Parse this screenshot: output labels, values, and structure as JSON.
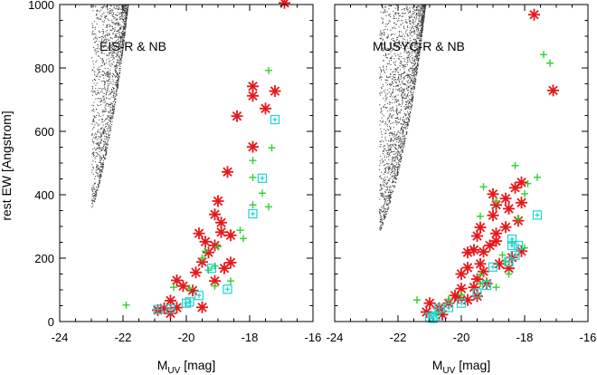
{
  "figure": {
    "ylabel": "rest EW [Angstrom]",
    "xlabel_main": "M",
    "xlabel_sub": "UV",
    "xlabel_unit": "[mag]"
  },
  "colors": {
    "cloud": "#3c3c3c",
    "red_star": "#e8171a",
    "green_cross": "#2fd12f",
    "cyan_square": "#18d6d0",
    "axis": "#000000"
  },
  "chart_data": [
    {
      "type": "scatter",
      "title": "EIS-R & NB",
      "xlim": [
        -24,
        -16
      ],
      "ylim": [
        0,
        1000
      ],
      "xticks": [
        -24,
        -22,
        -20,
        -18,
        -16
      ],
      "yticks": [
        0,
        200,
        400,
        600,
        800,
        1000
      ],
      "xtick_labels": [
        "-24",
        "-22",
        "-20",
        "-18",
        "-16"
      ],
      "ytick_labels": [
        "0",
        "200",
        "400",
        "600",
        "800",
        "1000"
      ],
      "grid": false,
      "cloud": {
        "x_start": -23.0,
        "curve_b": 26.79,
        "curve_k": 0.91,
        "color_key": "cloud"
      },
      "series": [
        {
          "marker": "asterisk",
          "color_key": "red_star",
          "points": [
            [
              -16.9,
              1005
            ],
            [
              -17.9,
              742
            ],
            [
              -17.9,
              712
            ],
            [
              -17.2,
              727
            ],
            [
              -18.4,
              648
            ],
            [
              -17.5,
              672
            ],
            [
              -17.9,
              551
            ],
            [
              -18.7,
              472
            ],
            [
              -19.0,
              380
            ],
            [
              -19.1,
              338
            ],
            [
              -18.9,
              312
            ],
            [
              -18.9,
              282
            ],
            [
              -18.6,
              272
            ],
            [
              -19.6,
              278
            ],
            [
              -19.4,
              252
            ],
            [
              -19.1,
              240
            ],
            [
              -19.3,
              218
            ],
            [
              -19.5,
              188
            ],
            [
              -18.6,
              186
            ],
            [
              -18.8,
              168
            ],
            [
              -19.7,
              155
            ],
            [
              -20.3,
              130
            ],
            [
              -19.1,
              128
            ],
            [
              -20.1,
              112
            ],
            [
              -19.8,
              98
            ],
            [
              -20.5,
              66
            ],
            [
              -20.7,
              42
            ],
            [
              -20.3,
              44
            ],
            [
              -20.5,
              26
            ],
            [
              -19.5,
              45
            ],
            [
              -20.9,
              36
            ]
          ]
        },
        {
          "marker": "cross",
          "color_key": "green_cross",
          "points": [
            [
              -17.4,
              792
            ],
            [
              -17.3,
              548
            ],
            [
              -17.9,
              508
            ],
            [
              -17.9,
              455
            ],
            [
              -17.6,
              405
            ],
            [
              -17.9,
              368
            ],
            [
              -17.4,
              362
            ],
            [
              -18.3,
              288
            ],
            [
              -19.0,
              236
            ],
            [
              -19.4,
              222
            ],
            [
              -19.5,
              200
            ],
            [
              -19.1,
              175
            ],
            [
              -19.3,
              162
            ],
            [
              -18.6,
              128
            ],
            [
              -19.1,
              112
            ],
            [
              -19.9,
              105
            ],
            [
              -20.4,
              108
            ],
            [
              -21.9,
              52
            ],
            [
              -18.2,
              262
            ]
          ]
        },
        {
          "marker": "square",
          "color_key": "cyan_square",
          "points": [
            [
              -17.2,
              637
            ],
            [
              -17.6,
              452
            ],
            [
              -17.9,
              340
            ],
            [
              -19.2,
              168
            ],
            [
              -19.6,
              82
            ],
            [
              -19.9,
              62
            ],
            [
              -20.0,
              58
            ],
            [
              -20.5,
              40
            ],
            [
              -20.9,
              38
            ],
            [
              -18.7,
              102
            ]
          ]
        }
      ]
    },
    {
      "type": "scatter",
      "title": "MUSYC-R & NB",
      "xlim": [
        -24,
        -16
      ],
      "ylim": [
        0,
        1000
      ],
      "xticks": [
        -24,
        -22,
        -20,
        -18,
        -16
      ],
      "yticks": [
        0,
        200,
        400,
        600,
        800,
        1000
      ],
      "xtick_labels": [
        "-24",
        "-22",
        "-20",
        "-18",
        "-16"
      ],
      "ytick_labels": [
        "",
        "",
        "",
        "",
        "",
        ""
      ],
      "grid": false,
      "cloud": {
        "x_start": -22.6,
        "curve_b": 25.3,
        "curve_k": 0.87,
        "color_key": "cloud"
      },
      "series": [
        {
          "marker": "asterisk",
          "color_key": "red_star",
          "points": [
            [
              -17.7,
              968
            ],
            [
              -17.1,
              729
            ],
            [
              -18.1,
              439
            ],
            [
              -18.3,
              422
            ],
            [
              -19.0,
              402
            ],
            [
              -18.6,
              388
            ],
            [
              -18.1,
              375
            ],
            [
              -18.9,
              368
            ],
            [
              -18.5,
              356
            ],
            [
              -19.0,
              335
            ],
            [
              -18.2,
              318
            ],
            [
              -18.6,
              298
            ],
            [
              -19.4,
              297
            ],
            [
              -18.9,
              278
            ],
            [
              -19.5,
              270
            ],
            [
              -18.9,
              254
            ],
            [
              -19.1,
              240
            ],
            [
              -19.6,
              226
            ],
            [
              -18.1,
              222
            ],
            [
              -19.3,
              220
            ],
            [
              -19.8,
              218
            ],
            [
              -18.4,
              202
            ],
            [
              -19.4,
              182
            ],
            [
              -19.8,
              170
            ],
            [
              -18.8,
              182
            ],
            [
              -18.5,
              168
            ],
            [
              -19.3,
              158
            ],
            [
              -20.0,
              150
            ],
            [
              -19.5,
              134
            ],
            [
              -19.2,
              120
            ],
            [
              -19.6,
              108
            ],
            [
              -20.0,
              104
            ],
            [
              -19.5,
              80
            ],
            [
              -19.8,
              68
            ],
            [
              -20.1,
              75
            ],
            [
              -20.4,
              58
            ],
            [
              -21.0,
              58
            ],
            [
              -20.7,
              42
            ],
            [
              -20.6,
              22
            ],
            [
              -21.1,
              30
            ],
            [
              -20.2,
              82
            ]
          ]
        },
        {
          "marker": "cross",
          "color_key": "green_cross",
          "points": [
            [
              -17.4,
              842
            ],
            [
              -17.2,
              815
            ],
            [
              -18.3,
              492
            ],
            [
              -17.6,
              455
            ],
            [
              -19.3,
              425
            ],
            [
              -17.9,
              435
            ],
            [
              -18.0,
              403
            ],
            [
              -18.9,
              380
            ],
            [
              -18.2,
              325
            ],
            [
              -19.4,
              332
            ],
            [
              -18.4,
              248
            ],
            [
              -18.0,
              232
            ],
            [
              -18.7,
              210
            ],
            [
              -18.6,
              190
            ],
            [
              -18.5,
              150
            ],
            [
              -19.4,
              148
            ],
            [
              -19.2,
              128
            ],
            [
              -19.4,
              120
            ],
            [
              -18.9,
              108
            ],
            [
              -20.0,
              84
            ],
            [
              -20.4,
              70
            ],
            [
              -21.4,
              68
            ],
            [
              -20.8,
              25
            ]
          ]
        },
        {
          "marker": "square",
          "color_key": "cyan_square",
          "points": [
            [
              -17.6,
              336
            ],
            [
              -18.4,
              260
            ],
            [
              -18.2,
              240
            ],
            [
              -18.4,
              240
            ],
            [
              -18.3,
              208
            ],
            [
              -18.5,
              188
            ],
            [
              -19.0,
              172
            ],
            [
              -19.2,
              114
            ],
            [
              -19.5,
              90
            ],
            [
              -20.0,
              58
            ],
            [
              -20.4,
              44
            ],
            [
              -20.7,
              42
            ],
            [
              -20.8,
              18
            ],
            [
              -20.9,
              10
            ],
            [
              -21.0,
              14
            ]
          ]
        }
      ]
    }
  ]
}
